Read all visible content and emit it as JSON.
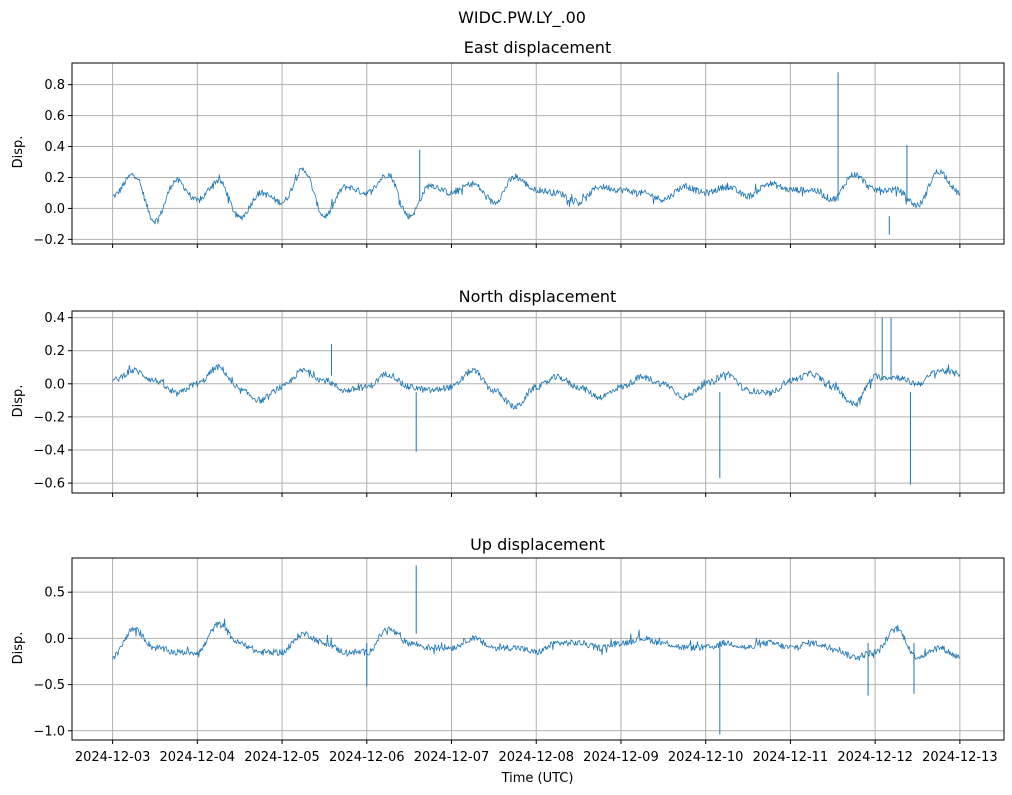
{
  "chart_data": {
    "type": "line",
    "title": "WIDC.PW.LY_.00",
    "xlabel": "Time (UTC)",
    "x_ticks": [
      "2024-12-03",
      "2024-12-04",
      "2024-12-05",
      "2024-12-06",
      "2024-12-07",
      "2024-12-08",
      "2024-12-09",
      "2024-12-10",
      "2024-12-11",
      "2024-12-12",
      "2024-12-13"
    ],
    "xlim": [
      "2024-12-02T12:30",
      "2024-12-13T12:30"
    ],
    "grid": true,
    "panels": [
      {
        "title": "East displacement",
        "ylabel": "Disp.",
        "ylim": [
          -0.23,
          0.94
        ],
        "yticks": [
          -0.2,
          0.0,
          0.2,
          0.4,
          0.6,
          0.8
        ],
        "ytick_labels": [
          "−0.2",
          "0.0",
          "0.2",
          "0.4",
          "0.6",
          "0.8"
        ],
        "series": [
          {
            "x": [
              "2024-12-03T00:00",
              "2024-12-03T06:00",
              "2024-12-03T12:00",
              "2024-12-03T18:00",
              "2024-12-04T00:00",
              "2024-12-04T06:00",
              "2024-12-04T12:00",
              "2024-12-04T18:00",
              "2024-12-05T00:00",
              "2024-12-05T06:00",
              "2024-12-05T12:00",
              "2024-12-05T18:00",
              "2024-12-06T00:00",
              "2024-12-06T06:00",
              "2024-12-06T12:00",
              "2024-12-06T18:00",
              "2024-12-07T00:00",
              "2024-12-07T06:00",
              "2024-12-07T12:00",
              "2024-12-07T18:00",
              "2024-12-08T00:00",
              "2024-12-08T06:00",
              "2024-12-08T12:00",
              "2024-12-08T18:00",
              "2024-12-09T00:00",
              "2024-12-09T06:00",
              "2024-12-09T12:00",
              "2024-12-09T18:00",
              "2024-12-10T00:00",
              "2024-12-10T06:00",
              "2024-12-10T12:00",
              "2024-12-10T18:00",
              "2024-12-11T00:00",
              "2024-12-11T06:00",
              "2024-12-11T12:00",
              "2024-12-11T18:00",
              "2024-12-12T00:00",
              "2024-12-12T06:00",
              "2024-12-12T12:00",
              "2024-12-12T18:00",
              "2024-12-13T00:00"
            ],
            "y": [
              0.08,
              0.22,
              -0.08,
              0.18,
              0.05,
              0.18,
              -0.06,
              0.1,
              0.04,
              0.25,
              -0.05,
              0.14,
              0.1,
              0.22,
              -0.05,
              0.15,
              0.1,
              0.16,
              0.04,
              0.2,
              0.12,
              0.1,
              0.04,
              0.14,
              0.12,
              0.1,
              0.06,
              0.14,
              0.1,
              0.14,
              0.08,
              0.16,
              0.12,
              0.12,
              0.06,
              0.22,
              0.12,
              0.12,
              0.02,
              0.24,
              0.1
            ]
          }
        ]
      },
      {
        "title": "North displacement",
        "ylabel": "Disp.",
        "ylim": [
          -0.66,
          0.44
        ],
        "yticks": [
          -0.6,
          -0.4,
          -0.2,
          0.0,
          0.2,
          0.4
        ],
        "ytick_labels": [
          "−0.6",
          "−0.4",
          "−0.2",
          "0.0",
          "0.2",
          "0.4"
        ],
        "series": [
          {
            "x": [
              "2024-12-03T00:00",
              "2024-12-03T06:00",
              "2024-12-03T12:00",
              "2024-12-03T18:00",
              "2024-12-04T00:00",
              "2024-12-04T06:00",
              "2024-12-04T12:00",
              "2024-12-04T18:00",
              "2024-12-05T00:00",
              "2024-12-05T06:00",
              "2024-12-05T12:00",
              "2024-12-05T18:00",
              "2024-12-06T00:00",
              "2024-12-06T06:00",
              "2024-12-06T12:00",
              "2024-12-06T18:00",
              "2024-12-07T00:00",
              "2024-12-07T06:00",
              "2024-12-07T12:00",
              "2024-12-07T18:00",
              "2024-12-08T00:00",
              "2024-12-08T06:00",
              "2024-12-08T12:00",
              "2024-12-08T18:00",
              "2024-12-09T00:00",
              "2024-12-09T06:00",
              "2024-12-09T12:00",
              "2024-12-09T18:00",
              "2024-12-10T00:00",
              "2024-12-10T06:00",
              "2024-12-10T12:00",
              "2024-12-10T18:00",
              "2024-12-11T00:00",
              "2024-12-11T06:00",
              "2024-12-11T12:00",
              "2024-12-11T18:00",
              "2024-12-12T00:00",
              "2024-12-12T06:00",
              "2024-12-12T12:00",
              "2024-12-12T18:00",
              "2024-12-13T00:00"
            ],
            "y": [
              0.02,
              0.08,
              0.02,
              -0.06,
              0.0,
              0.1,
              -0.04,
              -0.1,
              -0.02,
              0.08,
              0.02,
              -0.04,
              -0.02,
              0.06,
              -0.02,
              -0.04,
              -0.02,
              0.08,
              -0.04,
              -0.14,
              -0.02,
              0.04,
              -0.02,
              -0.08,
              -0.02,
              0.04,
              0.0,
              -0.08,
              0.0,
              0.06,
              -0.04,
              -0.06,
              0.02,
              0.06,
              -0.02,
              -0.12,
              0.04,
              0.04,
              0.0,
              0.08,
              0.06
            ]
          }
        ]
      },
      {
        "title": "Up displacement",
        "ylabel": "Disp.",
        "ylim": [
          -1.1,
          0.87
        ],
        "yticks": [
          -1.0,
          -0.5,
          0.0,
          0.5
        ],
        "ytick_labels": [
          "−1.0",
          "−0.5",
          "0.0",
          "0.5"
        ],
        "series": [
          {
            "x": [
              "2024-12-03T00:00",
              "2024-12-03T06:00",
              "2024-12-03T12:00",
              "2024-12-03T18:00",
              "2024-12-04T00:00",
              "2024-12-04T06:00",
              "2024-12-04T12:00",
              "2024-12-04T18:00",
              "2024-12-05T00:00",
              "2024-12-05T06:00",
              "2024-12-05T12:00",
              "2024-12-05T18:00",
              "2024-12-06T00:00",
              "2024-12-06T06:00",
              "2024-12-06T12:00",
              "2024-12-06T18:00",
              "2024-12-07T00:00",
              "2024-12-07T06:00",
              "2024-12-07T12:00",
              "2024-12-07T18:00",
              "2024-12-08T00:00",
              "2024-12-08T06:00",
              "2024-12-08T12:00",
              "2024-12-08T18:00",
              "2024-12-09T00:00",
              "2024-12-09T06:00",
              "2024-12-09T12:00",
              "2024-12-09T18:00",
              "2024-12-10T00:00",
              "2024-12-10T06:00",
              "2024-12-10T12:00",
              "2024-12-10T18:00",
              "2024-12-11T00:00",
              "2024-12-11T06:00",
              "2024-12-11T12:00",
              "2024-12-11T18:00",
              "2024-12-12T00:00",
              "2024-12-12T06:00",
              "2024-12-12T12:00",
              "2024-12-12T18:00",
              "2024-12-13T00:00"
            ],
            "y": [
              -0.2,
              0.1,
              -0.1,
              -0.15,
              -0.15,
              0.15,
              -0.05,
              -0.15,
              -0.15,
              0.05,
              -0.05,
              -0.15,
              -0.15,
              0.1,
              -0.05,
              -0.1,
              -0.1,
              0.0,
              -0.1,
              -0.1,
              -0.15,
              -0.05,
              -0.05,
              -0.1,
              -0.05,
              0.0,
              -0.05,
              -0.1,
              -0.1,
              -0.05,
              -0.1,
              -0.05,
              -0.1,
              -0.05,
              -0.1,
              -0.2,
              -0.15,
              0.1,
              -0.2,
              -0.1,
              -0.2
            ]
          }
        ]
      }
    ],
    "spikes": [
      {
        "panel": 0,
        "x": "2024-12-11T13:30",
        "y": 0.88
      },
      {
        "panel": 0,
        "x": "2024-12-12T09:00",
        "y": 0.41
      },
      {
        "panel": 0,
        "x": "2024-12-12T04:00",
        "y": -0.17
      },
      {
        "panel": 0,
        "x": "2024-12-06T15:00",
        "y": 0.38
      },
      {
        "panel": 1,
        "x": "2024-12-06T14:00",
        "y": -0.41
      },
      {
        "panel": 1,
        "x": "2024-12-10T04:00",
        "y": -0.57
      },
      {
        "panel": 1,
        "x": "2024-12-12T10:00",
        "y": -0.61
      },
      {
        "panel": 1,
        "x": "2024-12-12T02:00",
        "y": 0.4
      },
      {
        "panel": 1,
        "x": "2024-12-12T04:30",
        "y": 0.4
      },
      {
        "panel": 1,
        "x": "2024-12-05T14:00",
        "y": 0.24
      },
      {
        "panel": 2,
        "x": "2024-12-06T14:00",
        "y": 0.79
      },
      {
        "panel": 2,
        "x": "2024-12-10T04:00",
        "y": -1.04
      },
      {
        "panel": 2,
        "x": "2024-12-11T22:00",
        "y": -0.62
      },
      {
        "panel": 2,
        "x": "2024-12-12T11:00",
        "y": -0.6
      },
      {
        "panel": 2,
        "x": "2024-12-06T00:00",
        "y": -0.52
      }
    ]
  }
}
